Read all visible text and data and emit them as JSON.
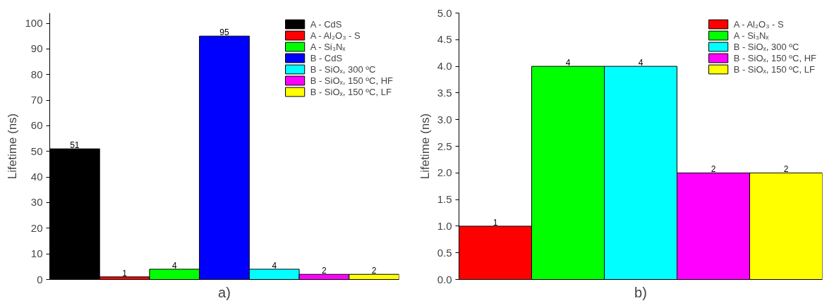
{
  "chart_data": [
    {
      "type": "bar",
      "ylabel": "Lifetime (ns)",
      "categories": [
        null,
        null,
        null,
        null,
        null,
        null,
        null
      ],
      "ylim": [
        0,
        104
      ],
      "yticks": [
        0,
        10,
        20,
        30,
        40,
        50,
        60,
        70,
        80,
        90,
        100
      ],
      "grid": false,
      "legend": "top right",
      "tick_labels": "y",
      "data_labels": true,
      "annotations": [
        "a)"
      ],
      "series": [
        {
          "name": "A - CdS",
          "color": "#000000",
          "values": [
            51,
            null,
            null,
            null,
            null,
            null,
            null
          ]
        },
        {
          "name": "A - Al₂O₃ - S",
          "color": "#ff0000",
          "values": [
            null,
            1,
            null,
            null,
            null,
            null,
            null
          ]
        },
        {
          "name": "A - Si₃Nₓ",
          "color": "#00ff00",
          "values": [
            null,
            null,
            4,
            null,
            null,
            null,
            null
          ]
        },
        {
          "name": "B - CdS",
          "color": "#0000ff",
          "values": [
            null,
            null,
            null,
            95,
            null,
            null,
            null
          ]
        },
        {
          "name": "B - SiOₓ, 300 ºC",
          "color": "#00ffff",
          "values": [
            null,
            null,
            null,
            null,
            4,
            null,
            null
          ]
        },
        {
          "name": "B - SiOₓ, 150 ºC, HF",
          "color": "#ff00ff",
          "values": [
            null,
            null,
            null,
            null,
            null,
            2,
            null
          ]
        },
        {
          "name": "B - SiOₓ, 150 ºC, LF",
          "color": "#ffff00",
          "values": [
            null,
            null,
            null,
            null,
            null,
            null,
            2
          ]
        }
      ]
    },
    {
      "type": "bar",
      "ylabel": "Lifetime (ns)",
      "categories": [
        null,
        null,
        null,
        null,
        null
      ],
      "ylim": [
        0,
        5
      ],
      "yticks": [
        {
          "value": 0,
          "label": "0.0"
        },
        {
          "value": 0.5,
          "label": "0.5"
        },
        {
          "value": 1,
          "label": "1.0"
        },
        {
          "value": 1.5,
          "label": "1.5"
        },
        {
          "value": 2,
          "label": "2.0"
        },
        {
          "value": 2.5,
          "label": "2.5"
        },
        {
          "value": 3,
          "label": "3.0"
        },
        {
          "value": 3.5,
          "label": "3.5"
        },
        {
          "value": 4,
          "label": "4.0"
        },
        {
          "value": 4.5,
          "label": "4.5"
        },
        {
          "value": 5,
          "label": "5.0"
        }
      ],
      "grid": false,
      "legend": "top right",
      "tick_labels": "y",
      "data_labels": true,
      "annotations": [
        "b)"
      ],
      "series": [
        {
          "name": "A - Al₂O₃ - S",
          "color": "#ff0000",
          "values": [
            1,
            null,
            null,
            null,
            null
          ]
        },
        {
          "name": "A - Si₃Nₓ",
          "color": "#00ff00",
          "values": [
            null,
            4,
            null,
            null,
            null
          ]
        },
        {
          "name": "B - SiOₓ, 300 ºC",
          "color": "#00ffff",
          "values": [
            null,
            null,
            4,
            null,
            null
          ]
        },
        {
          "name": "B - SiOₓ, 150 ºC, HF",
          "color": "#ff00ff",
          "values": [
            null,
            null,
            null,
            2,
            null
          ]
        },
        {
          "name": "B - SiOₓ, 150 ºC, LF",
          "color": "#ffff00",
          "values": [
            null,
            null,
            null,
            null,
            2
          ]
        }
      ]
    }
  ]
}
